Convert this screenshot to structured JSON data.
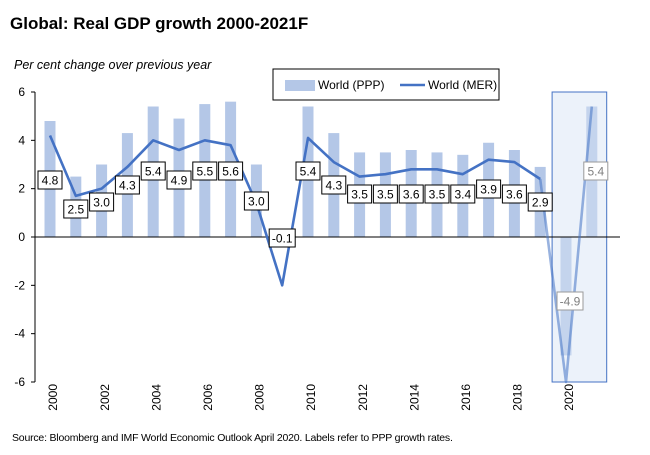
{
  "title": "Global: Real GDP growth 2000-2021F",
  "source": "Source: Bloomberg and IMF World Economic Outlook April 2020.  Labels refer to PPP growth rates.",
  "chart_data": {
    "type": "bar+line",
    "title": "Global: Real GDP growth 2000-2021F",
    "ylabel": "Per cent change over previous year",
    "ylim": [
      -6,
      6
    ],
    "yticks": [
      "-6",
      "-4",
      "-2",
      "0",
      "2",
      "4",
      "6"
    ],
    "x": [
      2000,
      2001,
      2002,
      2003,
      2004,
      2005,
      2006,
      2007,
      2008,
      2009,
      2010,
      2011,
      2012,
      2013,
      2014,
      2015,
      2016,
      2017,
      2018,
      2019,
      2020,
      2021
    ],
    "xtick_labels": [
      "2000",
      "2002",
      "2004",
      "2006",
      "2008",
      "2010",
      "2012",
      "2014",
      "2016",
      "2018",
      "2020"
    ],
    "forecast_years": [
      2020,
      2021
    ],
    "series": [
      {
        "name": "World (PPP)",
        "kind": "bar",
        "color": "#b4c7e7",
        "values": [
          4.8,
          2.5,
          3.0,
          4.3,
          5.4,
          4.9,
          5.5,
          5.6,
          3.0,
          -0.1,
          5.4,
          4.3,
          3.5,
          3.5,
          3.6,
          3.5,
          3.4,
          3.9,
          3.6,
          2.9,
          -4.9,
          5.4
        ],
        "labels": [
          "4.8",
          "2.5",
          "3.0",
          "4.3",
          "5.4",
          "4.9",
          "5.5",
          "5.6",
          "3.0",
          "-0.1",
          "5.4",
          "4.3",
          "3.5",
          "3.5",
          "3.6",
          "3.5",
          "3.4",
          "3.9",
          "3.6",
          "2.9",
          "-4.9",
          "5.4"
        ]
      },
      {
        "name": "World (MER)",
        "kind": "line",
        "color": "#4472c4",
        "values": [
          4.2,
          1.7,
          2.0,
          2.9,
          4.0,
          3.6,
          4.0,
          3.8,
          1.4,
          -2.0,
          4.1,
          3.1,
          2.5,
          2.6,
          2.8,
          2.8,
          2.6,
          3.2,
          3.1,
          2.4,
          -6.0,
          5.4
        ]
      }
    ],
    "legend": {
      "position": "top-right",
      "entries": [
        "World (PPP)",
        "World (MER)"
      ]
    }
  }
}
